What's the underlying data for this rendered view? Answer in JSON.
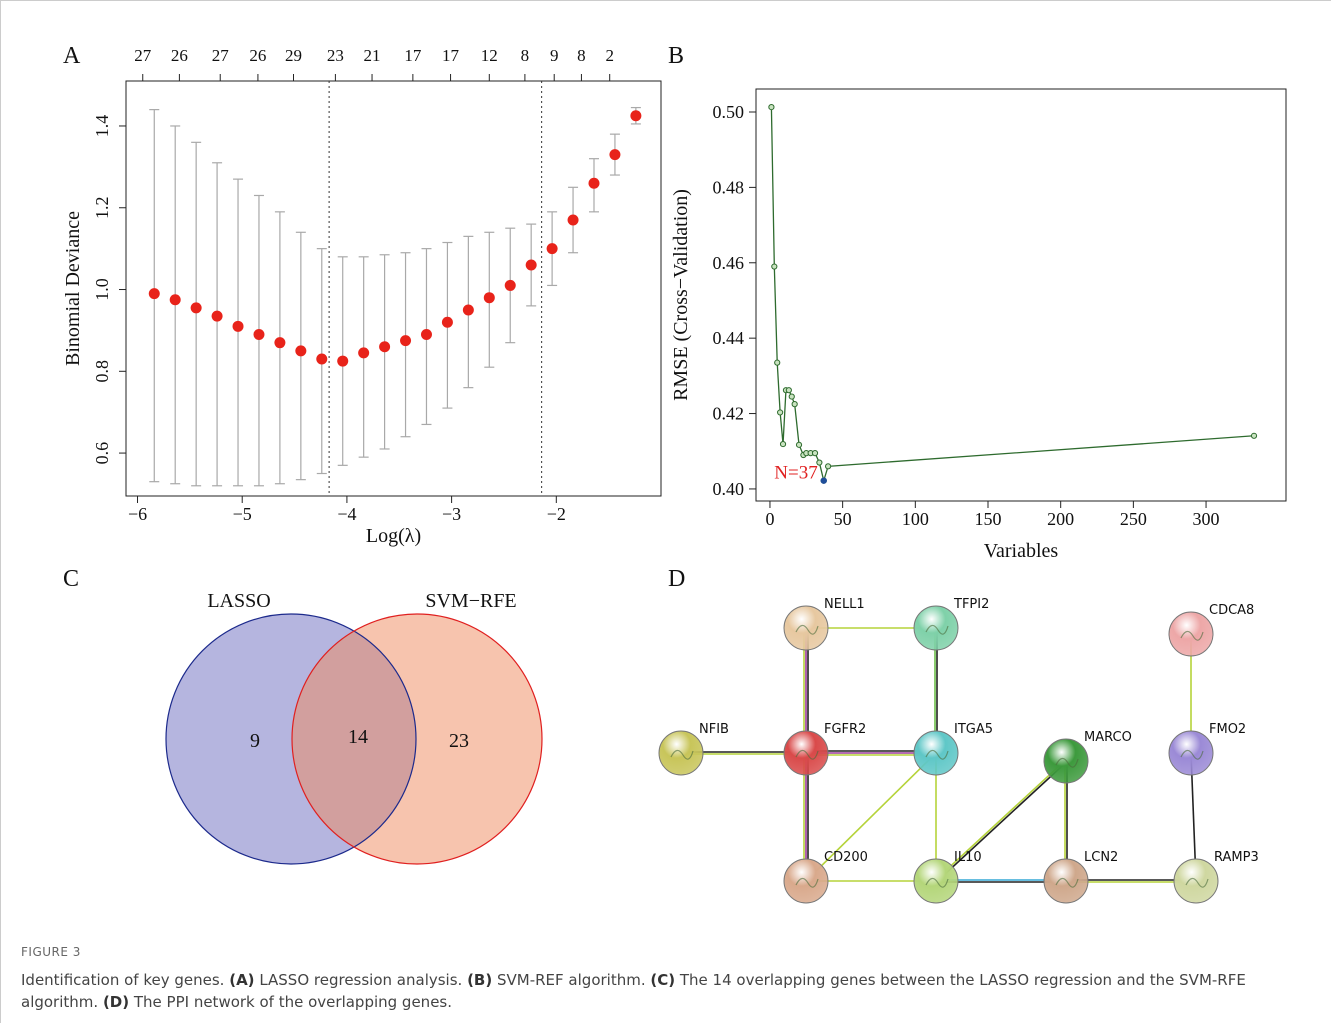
{
  "panels": [
    "A",
    "B",
    "C",
    "D"
  ],
  "chart_data": [
    {
      "type": "errorbar",
      "xlabel": "Log(λ)",
      "ylabel": "Binomial Deviance",
      "x": [
        -5.84,
        -5.64,
        -5.44,
        -5.24,
        -5.04,
        -4.84,
        -4.64,
        -4.44,
        -4.24,
        -4.04,
        -3.84,
        -3.64,
        -3.44,
        -3.24,
        -3.04,
        -2.84,
        -2.64,
        -2.44,
        -2.24,
        -2.04,
        -1.84,
        -1.64,
        -1.44,
        -1.24
      ],
      "values": [
        0.99,
        0.975,
        0.955,
        0.935,
        0.91,
        0.89,
        0.87,
        0.85,
        0.83,
        0.825,
        0.845,
        0.86,
        0.875,
        0.89,
        0.92,
        0.95,
        0.98,
        1.01,
        1.06,
        1.1,
        1.17,
        1.26,
        1.33,
        1.425
      ],
      "upper": [
        1.44,
        1.4,
        1.36,
        1.31,
        1.27,
        1.23,
        1.19,
        1.14,
        1.1,
        1.08,
        1.08,
        1.085,
        1.09,
        1.1,
        1.115,
        1.13,
        1.14,
        1.15,
        1.16,
        1.19,
        1.25,
        1.32,
        1.38,
        1.445
      ],
      "lower": [
        0.53,
        0.525,
        0.52,
        0.52,
        0.52,
        0.52,
        0.525,
        0.535,
        0.55,
        0.57,
        0.59,
        0.61,
        0.64,
        0.67,
        0.71,
        0.76,
        0.81,
        0.87,
        0.96,
        1.01,
        1.09,
        1.19,
        1.28,
        1.405
      ],
      "color": "#e8231a",
      "error_color": "#a9a9a9",
      "xlim": [
        -6.11,
        -1.0
      ],
      "ylim": [
        0.495,
        1.51
      ],
      "xticks": [
        {
          "value": -6,
          "label": "−6"
        },
        {
          "value": -5,
          "label": "−5"
        },
        {
          "value": -4,
          "label": "−4"
        },
        {
          "value": -3,
          "label": "−3"
        },
        {
          "value": -2,
          "label": "−2"
        }
      ],
      "yticks": [
        0.6,
        0.8,
        {
          "value": 1,
          "label": "1.0"
        },
        1.2,
        1.4
      ],
      "vlines": [
        -4.17,
        -2.14
      ],
      "top_ticks": [
        {
          "value": -5.95,
          "label": "27"
        },
        {
          "value": -5.6,
          "label": "26"
        },
        {
          "value": -5.21,
          "label": "27"
        },
        {
          "value": -4.85,
          "label": "26"
        },
        {
          "value": -4.51,
          "label": "29"
        },
        {
          "value": -4.11,
          "label": "23"
        },
        {
          "value": -3.76,
          "label": "21"
        },
        {
          "value": -3.37,
          "label": "17"
        },
        {
          "value": -3.01,
          "label": "17"
        },
        {
          "value": -2.64,
          "label": "12"
        },
        {
          "value": -2.3,
          "label": "8"
        },
        {
          "value": -2.02,
          "label": "9"
        },
        {
          "value": -1.76,
          "label": "8"
        },
        {
          "value": -1.49,
          "label": "2"
        }
      ]
    },
    {
      "type": "line",
      "xlabel": "Variables",
      "ylabel": "RMSE (Cross−Validation)",
      "x": [
        1,
        3,
        5,
        7,
        9,
        11,
        13,
        15,
        17,
        20,
        23,
        25,
        28,
        31,
        34,
        37,
        40,
        333
      ],
      "values": [
        0.5013,
        0.459,
        0.4335,
        0.4203,
        0.4119,
        0.4262,
        0.4262,
        0.4245,
        0.4225,
        0.4117,
        0.409,
        0.4095,
        0.4095,
        0.4095,
        0.407,
        0.4022,
        0.406,
        0.4141
      ],
      "color": "#2e6b2e",
      "marker_fill": "#c9e3c0",
      "xlim": [
        -9.6,
        355
      ],
      "ylim": [
        0.3968,
        0.5061
      ],
      "xticks": [
        0,
        50,
        100,
        150,
        200,
        250,
        300
      ],
      "yticks": [
        {
          "value": 0.4,
          "label": "0.40"
        },
        0.42,
        0.44,
        0.46,
        0.48,
        {
          "value": 0.5,
          "label": "0.50"
        }
      ],
      "annotation": {
        "text": "N=37",
        "x": 37,
        "y": 0.4022,
        "color": "#e02020",
        "point_color": "#1f4e9a"
      }
    },
    {
      "type": "venn",
      "sets": [
        {
          "name": "LASSO",
          "color": "#6c6cc0",
          "stroke": "#1c2a8c",
          "only": 9
        },
        {
          "name": "SVM−RFE",
          "color": "#f08a5d",
          "stroke": "#e02020",
          "only": 23
        }
      ],
      "overlap": 14
    }
  ],
  "network": {
    "nodes": [
      {
        "label": "NELL1",
        "color": "#e7c8a0"
      },
      {
        "label": "TFPI2",
        "color": "#7fd1a9"
      },
      {
        "label": "CDCA8",
        "color": "#eda7a7"
      },
      {
        "label": "NFIB",
        "color": "#c8c55a"
      },
      {
        "label": "FGFR2",
        "color": "#d94a4a"
      },
      {
        "label": "ITGA5",
        "color": "#5fc7c7"
      },
      {
        "label": "MARCO",
        "color": "#3d9a3d"
      },
      {
        "label": "FMO2",
        "color": "#9b8ad6"
      },
      {
        "label": "CD200",
        "color": "#d9a98c"
      },
      {
        "label": "IL10",
        "color": "#b4d67a"
      },
      {
        "label": "LCN2",
        "color": "#cfa88c"
      },
      {
        "label": "RAMP3",
        "color": "#cfd7a0"
      }
    ]
  },
  "caption": {
    "figure": "FIGURE 3",
    "parts": [
      {
        "text": "Identification of key genes. ",
        "bold": false
      },
      {
        "text": "(A)",
        "bold": true
      },
      {
        "text": " LASSO regression analysis. ",
        "bold": false
      },
      {
        "text": "(B)",
        "bold": true
      },
      {
        "text": " SVM-REF algorithm. ",
        "bold": false
      },
      {
        "text": "(C)",
        "bold": true
      },
      {
        "text": " The 14 overlapping genes between the LASSO regression and the SVM-RFE algorithm. ",
        "bold": false
      },
      {
        "text": "(D)",
        "bold": true
      },
      {
        "text": " The PPI network of the overlapping genes.",
        "bold": false
      }
    ]
  }
}
